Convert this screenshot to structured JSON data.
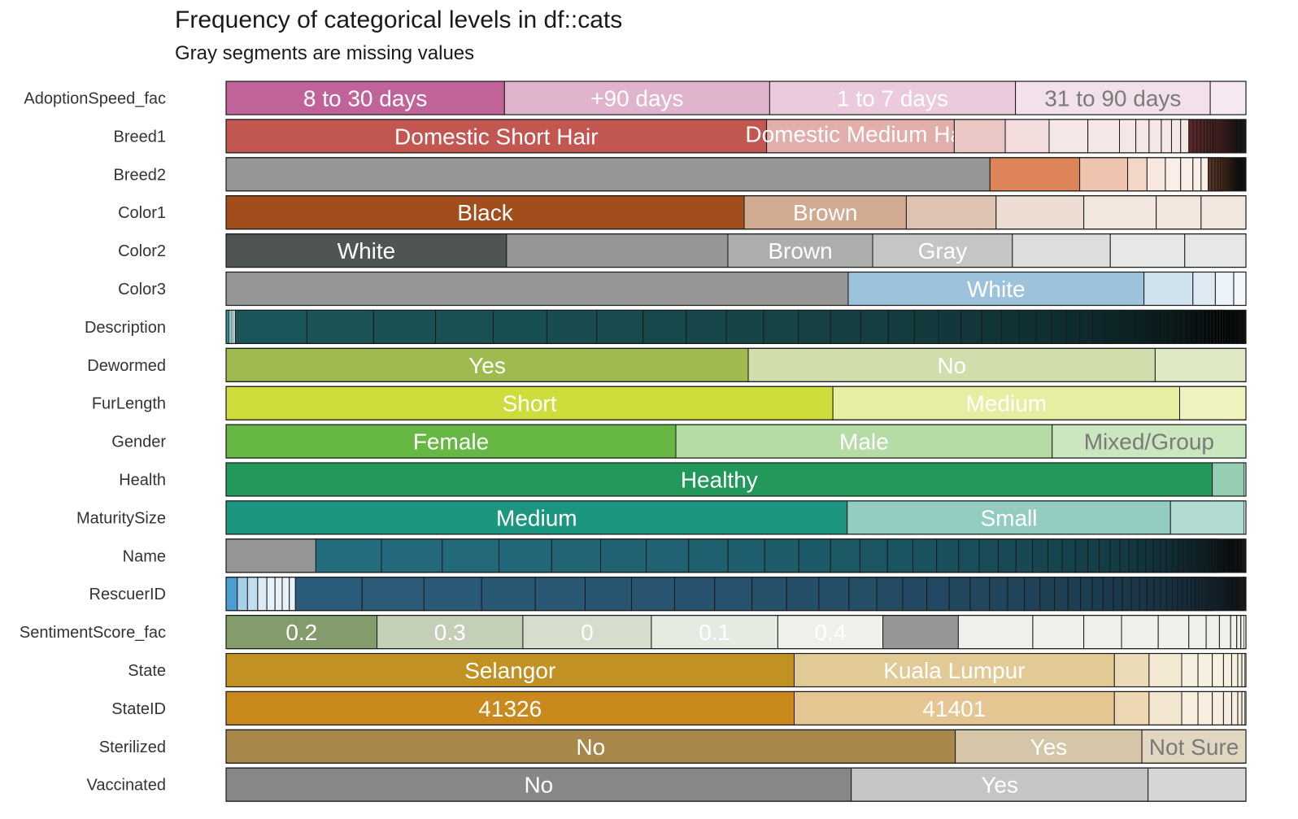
{
  "chart_data": {
    "type": "stacked-bar",
    "title": "Frequency of categorical levels in df::cats",
    "subtitle": "Gray segments are missing values",
    "orientation": "horizontal",
    "value_unit": "proportion",
    "missing_color": "#969696",
    "rows": [
      {
        "variable": "AdoptionSpeed_fac",
        "color": "#c06399",
        "label_color": "#ffffff",
        "segments": [
          {
            "label": "8 to 30 days",
            "value": 0.273
          },
          {
            "label": "+90 days",
            "value": 0.26
          },
          {
            "label": "1 to 7 days",
            "value": 0.241
          },
          {
            "label": "31 to 90 days",
            "value": 0.191
          },
          {
            "value": 0.035
          }
        ]
      },
      {
        "variable": "Breed1",
        "color": "#c25752",
        "segments": [
          {
            "label": "Domestic Short Hair",
            "value": 0.53
          },
          {
            "label": "Domestic Medium Hair",
            "value": 0.184,
            "small_label": true
          },
          {
            "value": 0.05
          },
          {
            "value": 0.043
          },
          {
            "value": 0.038
          },
          {
            "value": 0.031
          },
          {
            "value": 0.016
          },
          {
            "value": 0.013
          },
          {
            "value": 0.012
          },
          {
            "value": 0.01
          },
          {
            "value": 0.009
          },
          {
            "value": 0.008
          }
        ],
        "tail": {
          "count": 40,
          "value": 0.056
        }
      },
      {
        "variable": "Breed2",
        "color": "#dd8558",
        "segments": [
          {
            "missing": true,
            "value": 0.749
          },
          {
            "value": 0.088
          },
          {
            "value": 0.047
          },
          {
            "value": 0.019
          },
          {
            "value": 0.018
          },
          {
            "value": 0.015
          },
          {
            "value": 0.012
          },
          {
            "value": 0.008
          },
          {
            "value": 0.007
          }
        ],
        "tail": {
          "count": 20,
          "value": 0.037
        }
      },
      {
        "variable": "Color1",
        "color": "#a14e1c",
        "segments": [
          {
            "label": "Black",
            "value": 0.508
          },
          {
            "label": "Brown",
            "value": 0.159
          },
          {
            "value": 0.088
          },
          {
            "value": 0.086
          },
          {
            "value": 0.071
          },
          {
            "value": 0.044
          },
          {
            "value": 0.044
          }
        ]
      },
      {
        "variable": "Color2",
        "color": "#4f5651",
        "segments": [
          {
            "label": "White",
            "value": 0.275
          },
          {
            "missing": true,
            "value": 0.217
          },
          {
            "label": "Brown",
            "value": 0.142
          },
          {
            "label": "Gray",
            "value": 0.137
          },
          {
            "value": 0.096
          },
          {
            "value": 0.073
          },
          {
            "value": 0.06
          }
        ]
      },
      {
        "variable": "Color3",
        "color": "#9dc3dc",
        "segments": [
          {
            "missing": true,
            "value": 0.61
          },
          {
            "label": "White",
            "value": 0.29
          },
          {
            "value": 0.048
          },
          {
            "value": 0.022
          },
          {
            "value": 0.018
          },
          {
            "value": 0.012
          }
        ]
      },
      {
        "variable": "Description",
        "color": "#2e8e95",
        "segments": [
          {
            "value": 0.003
          },
          {
            "value": 0.002
          },
          {
            "value": 0.002
          },
          {
            "value": 0.002
          }
        ],
        "tail": {
          "count": 60,
          "value": 0.991
        }
      },
      {
        "variable": "Dewormed",
        "color": "#9fbb50",
        "segments": [
          {
            "label": "Yes",
            "value": 0.512
          },
          {
            "label": "No",
            "value": 0.399
          },
          {
            "value": 0.089
          }
        ]
      },
      {
        "variable": "FurLength",
        "color": "#cedc3c",
        "segments": [
          {
            "label": "Short",
            "value": 0.595
          },
          {
            "label": "Medium",
            "value": 0.34
          },
          {
            "value": 0.065
          }
        ]
      },
      {
        "variable": "Gender",
        "color": "#67b744",
        "segments": [
          {
            "label": "Female",
            "value": 0.441
          },
          {
            "label": "Male",
            "value": 0.369
          },
          {
            "label": "Mixed/Group",
            "value": 0.19
          }
        ]
      },
      {
        "variable": "Health",
        "color": "#22985a",
        "segments": [
          {
            "label": "Healthy",
            "value": 0.967
          },
          {
            "value": 0.031
          },
          {
            "value": 0.002
          }
        ]
      },
      {
        "variable": "MaturitySize",
        "color": "#1d9680",
        "segments": [
          {
            "label": "Medium",
            "value": 0.609
          },
          {
            "label": "Small",
            "value": 0.317
          },
          {
            "value": 0.072
          },
          {
            "value": 0.002
          }
        ]
      },
      {
        "variable": "Name",
        "color": "#37a8c2",
        "segments": [
          {
            "missing": true,
            "value": 0.088
          }
        ],
        "tail": {
          "count": 70,
          "value": 0.912
        }
      },
      {
        "variable": "RescuerID",
        "color": "#4a9ed2",
        "segments": [
          {
            "value": 0.011
          },
          {
            "value": 0.01
          },
          {
            "value": 0.01
          },
          {
            "value": 0.009
          },
          {
            "value": 0.008
          },
          {
            "value": 0.007
          },
          {
            "value": 0.007
          },
          {
            "value": 0.006
          }
        ],
        "tail": {
          "count": 90,
          "value": 0.932
        }
      },
      {
        "variable": "SentimentScore_fac",
        "color": "#849b6c",
        "segments": [
          {
            "label": "0.2",
            "value": 0.148
          },
          {
            "label": "0.3",
            "value": 0.143
          },
          {
            "label": "0",
            "value": 0.126
          },
          {
            "label": "0.1",
            "value": 0.124
          },
          {
            "label": "0.4",
            "value": 0.103
          },
          {
            "missing": true,
            "value": 0.074
          },
          {
            "value": 0.073
          },
          {
            "value": 0.05
          },
          {
            "value": 0.037
          },
          {
            "value": 0.036
          },
          {
            "value": 0.03
          },
          {
            "value": 0.017
          },
          {
            "value": 0.013
          },
          {
            "value": 0.011
          },
          {
            "value": 0.006
          },
          {
            "value": 0.004
          },
          {
            "value": 0.003
          },
          {
            "value": 0.002
          }
        ]
      },
      {
        "variable": "State",
        "color": "#c19124",
        "segments": [
          {
            "label": "Selangor",
            "value": 0.557
          },
          {
            "label": "Kuala Lumpur",
            "value": 0.314
          },
          {
            "value": 0.034
          },
          {
            "value": 0.032
          },
          {
            "value": 0.016
          },
          {
            "value": 0.014
          },
          {
            "value": 0.011
          },
          {
            "value": 0.008
          },
          {
            "value": 0.006
          },
          {
            "value": 0.004
          },
          {
            "value": 0.003
          },
          {
            "value": 0.001
          }
        ]
      },
      {
        "variable": "StateID",
        "color": "#c9891c",
        "segments": [
          {
            "label": "41326",
            "value": 0.557
          },
          {
            "label": "41401",
            "value": 0.314
          },
          {
            "value": 0.034
          },
          {
            "value": 0.032
          },
          {
            "value": 0.016
          },
          {
            "value": 0.014
          },
          {
            "value": 0.011
          },
          {
            "value": 0.008
          },
          {
            "value": 0.006
          },
          {
            "value": 0.004
          },
          {
            "value": 0.003
          },
          {
            "value": 0.001
          }
        ]
      },
      {
        "variable": "Sterilized",
        "color": "#a8884a",
        "segments": [
          {
            "label": "No",
            "value": 0.715
          },
          {
            "label": "Yes",
            "value": 0.183
          },
          {
            "label": "Not Sure",
            "value": 0.102
          }
        ]
      },
      {
        "variable": "Vaccinated",
        "color": "#878787",
        "segments": [
          {
            "label": "No",
            "value": 0.613
          },
          {
            "label": "Yes",
            "value": 0.291
          },
          {
            "value": 0.096
          }
        ]
      }
    ]
  }
}
